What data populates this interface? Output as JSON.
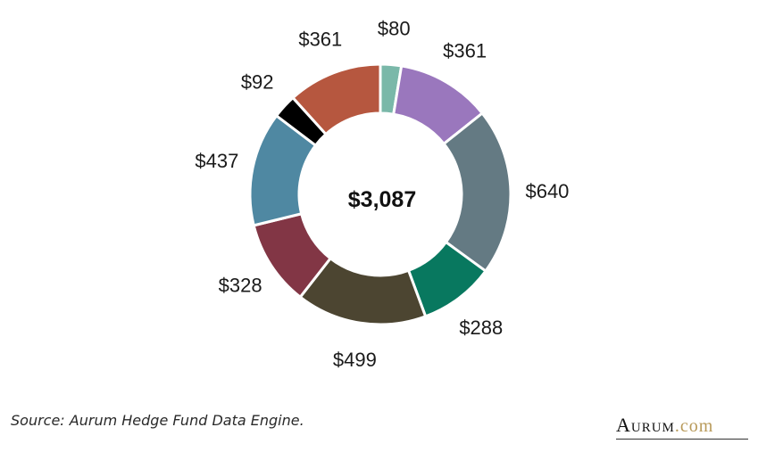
{
  "chart_data": {
    "type": "pie",
    "variant": "donut",
    "center_label": "$3,087",
    "slices": [
      {
        "label": "$80",
        "value": 80,
        "color": "#7ab8a9"
      },
      {
        "label": "$361",
        "value": 361,
        "color": "#9a77bd"
      },
      {
        "label": "$640",
        "value": 640,
        "color": "#647a83"
      },
      {
        "label": "$288",
        "value": 288,
        "color": "#08785f"
      },
      {
        "label": "$499",
        "value": 499,
        "color": "#4c4531"
      },
      {
        "label": "$328",
        "value": 328,
        "color": "#823645"
      },
      {
        "label": "$437",
        "value": 437,
        "color": "#4f88a2"
      },
      {
        "label": "$92",
        "value": 92,
        "color": "#000000"
      },
      {
        "label": "$361",
        "value": 361,
        "color": "#b6573f"
      }
    ]
  },
  "footer": {
    "source": "Source: Aurum Hedge Fund Data Engine.",
    "brand_main": "Aurum",
    "brand_domain": ".com"
  }
}
